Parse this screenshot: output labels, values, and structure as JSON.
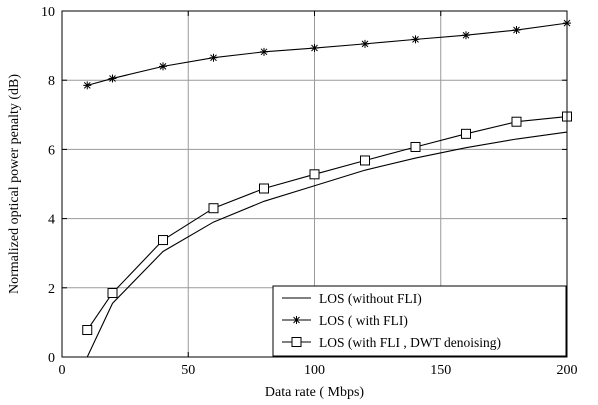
{
  "chart_data": {
    "type": "line",
    "title": "",
    "xlabel": "Data rate ( Mbps)",
    "ylabel": "Normalized optical power penalty (dB)",
    "xlim": [
      0,
      200
    ],
    "ylim": [
      0,
      10
    ],
    "xticks": [
      0,
      50,
      100,
      150,
      200
    ],
    "yticks": [
      0,
      2,
      4,
      6,
      8,
      10
    ],
    "grid": true,
    "legend_position": "bottom-right",
    "series": [
      {
        "name": "LOS (without FLI)",
        "marker": "none",
        "x": [
          10,
          20,
          40,
          60,
          80,
          100,
          120,
          140,
          160,
          180,
          200
        ],
        "y": [
          0.0,
          1.55,
          3.05,
          3.9,
          4.5,
          4.95,
          5.4,
          5.75,
          6.05,
          6.3,
          6.5
        ]
      },
      {
        "name": "LOS ( with FLI)",
        "marker": "star",
        "x": [
          10,
          20,
          40,
          60,
          80,
          100,
          120,
          140,
          160,
          180,
          200
        ],
        "y": [
          7.85,
          8.05,
          8.4,
          8.65,
          8.82,
          8.93,
          9.05,
          9.18,
          9.3,
          9.45,
          9.65
        ]
      },
      {
        "name": "LOS (with FLI , DWT denoising)",
        "marker": "square",
        "x": [
          10,
          20,
          40,
          60,
          80,
          100,
          120,
          140,
          160,
          180,
          200
        ],
        "y": [
          0.78,
          1.85,
          3.38,
          4.3,
          4.87,
          5.28,
          5.68,
          6.07,
          6.45,
          6.8,
          6.95
        ]
      }
    ]
  }
}
